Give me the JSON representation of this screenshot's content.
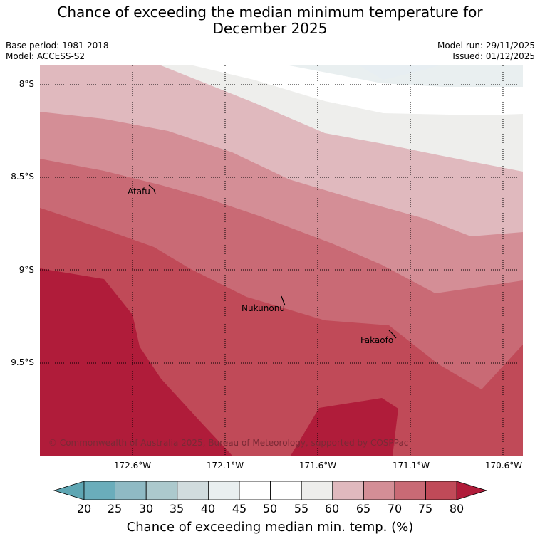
{
  "title_line1": "Chance of exceeding the median minimum temperature for",
  "title_line2": "December 2025",
  "base_period": "Base period: 1981-2018",
  "model": "Model: ACCESS-S2",
  "model_run": "Model run: 29/11/2025",
  "issued": "Issued: 01/12/2025",
  "lat_labels": [
    "8°S",
    "8.5°S",
    "9°S",
    "9.5°S"
  ],
  "lon_labels": [
    "172.6°W",
    "172.1°W",
    "171.6°W",
    "171.1°W",
    "170.6°W"
  ],
  "towns": [
    "Atafu",
    "Nukunonu",
    "Fakaofo"
  ],
  "copyright": "© Commonwealth of Australia 2025, Bureau of Meteorology, supported by COSPPac",
  "colorbar": {
    "ticks": [
      "20",
      "25",
      "30",
      "35",
      "40",
      "45",
      "50",
      "55",
      "60",
      "65",
      "70",
      "75",
      "80"
    ],
    "label": "Chance of exceeding median min. temp. (%)",
    "colors": [
      "#5ea6b3",
      "#6aadbb",
      "#8fbac4",
      "#acc9cd",
      "#d1dcde",
      "#e9eff0",
      "#ffffff",
      "#ffffff",
      "#eeeeec",
      "#e0b9be",
      "#d48e96",
      "#c96a75",
      "#c04a58",
      "#b01c3a"
    ]
  }
}
